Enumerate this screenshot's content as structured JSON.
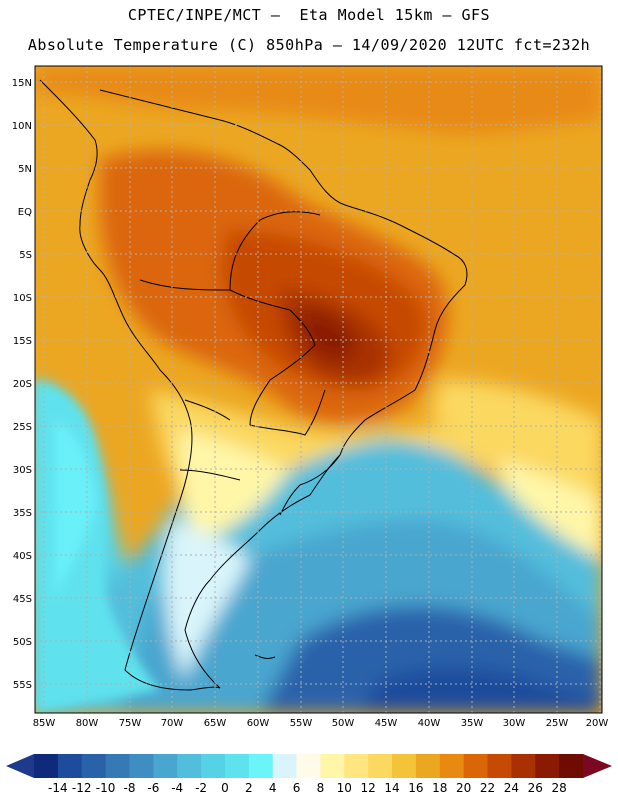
{
  "header": {
    "line1": "CPTEC/INPE/MCT –  Eta Model 15km – GFS",
    "line2": "Absolute Temperature (C) 850hPa – 14/09/2020 12UTC fct=232h"
  },
  "map": {
    "region": "South America",
    "lat_range": [
      -58,
      17
    ],
    "lon_range": [
      -86,
      -20
    ],
    "lat_ticks": [
      "15N",
      "10N",
      "5N",
      "EQ",
      "5S",
      "10S",
      "15S",
      "20S",
      "25S",
      "30S",
      "35S",
      "40S",
      "45S",
      "50S",
      "55S"
    ],
    "lon_ticks": [
      "85W",
      "80W",
      "75W",
      "70W",
      "65W",
      "60W",
      "55W",
      "50W",
      "45W",
      "40W",
      "35W",
      "30W",
      "25W",
      "20W"
    ]
  },
  "colorbar": {
    "labels": [
      "-14",
      "-12",
      "-10",
      "-8",
      "-6",
      "-4",
      "-2",
      "0",
      "2",
      "4",
      "6",
      "8",
      "10",
      "12",
      "14",
      "16",
      "18",
      "20",
      "22",
      "24",
      "26",
      "28"
    ],
    "colors": [
      "#0f2a7a",
      "#1d4c9c",
      "#2a62aa",
      "#3778b6",
      "#3f8ec2",
      "#48a6cf",
      "#52bedc",
      "#56d2e6",
      "#5ee2ee",
      "#6cf4fb",
      "#d9f5fb",
      "#fffbe8",
      "#fff6a8",
      "#ffe680",
      "#fbd860",
      "#f3c33a",
      "#eca722",
      "#e88a12",
      "#db6608",
      "#c64a04",
      "#a83002",
      "#8a1a02",
      "#6e0c02"
    ],
    "under_color": "#1e3a8c",
    "over_color": "#7a0820"
  }
}
